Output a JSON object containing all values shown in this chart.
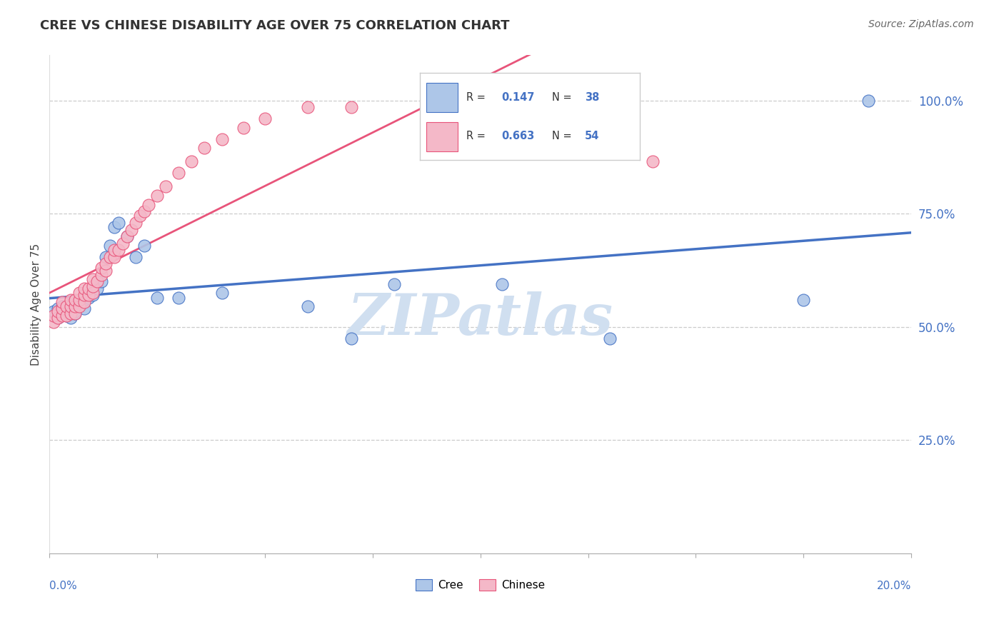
{
  "title": "CREE VS CHINESE DISABILITY AGE OVER 75 CORRELATION CHART",
  "source": "Source: ZipAtlas.com",
  "ylabel": "Disability Age Over 75",
  "cree_R": 0.147,
  "cree_N": 38,
  "chinese_R": 0.663,
  "chinese_N": 54,
  "cree_color": "#adc6e8",
  "chinese_color": "#f4b8c8",
  "cree_line_color": "#4472c4",
  "chinese_line_color": "#e8547a",
  "background_color": "#ffffff",
  "watermark": "ZIPatlas",
  "watermark_color": "#d0dff0",
  "xlim": [
    0.0,
    0.2
  ],
  "ylim": [
    0.0,
    1.1
  ],
  "cree_x": [
    0.001,
    0.001,
    0.002,
    0.002,
    0.003,
    0.003,
    0.004,
    0.004,
    0.005,
    0.005,
    0.005,
    0.006,
    0.006,
    0.007,
    0.007,
    0.008,
    0.008,
    0.009,
    0.01,
    0.011,
    0.012,
    0.013,
    0.014,
    0.015,
    0.016,
    0.018,
    0.02,
    0.022,
    0.025,
    0.03,
    0.04,
    0.06,
    0.07,
    0.08,
    0.105,
    0.13,
    0.175,
    0.19
  ],
  "cree_y": [
    0.525,
    0.535,
    0.52,
    0.54,
    0.53,
    0.545,
    0.525,
    0.535,
    0.52,
    0.55,
    0.545,
    0.53,
    0.535,
    0.55,
    0.56,
    0.54,
    0.56,
    0.565,
    0.57,
    0.585,
    0.6,
    0.655,
    0.68,
    0.72,
    0.73,
    0.7,
    0.655,
    0.68,
    0.565,
    0.565,
    0.575,
    0.545,
    0.475,
    0.595,
    0.595,
    0.475,
    0.56,
    1.0
  ],
  "chinese_x": [
    0.001,
    0.001,
    0.002,
    0.002,
    0.003,
    0.003,
    0.003,
    0.004,
    0.004,
    0.005,
    0.005,
    0.005,
    0.006,
    0.006,
    0.006,
    0.007,
    0.007,
    0.007,
    0.008,
    0.008,
    0.008,
    0.009,
    0.009,
    0.01,
    0.01,
    0.01,
    0.011,
    0.012,
    0.012,
    0.013,
    0.013,
    0.014,
    0.015,
    0.015,
    0.016,
    0.017,
    0.018,
    0.019,
    0.02,
    0.021,
    0.022,
    0.023,
    0.025,
    0.027,
    0.03,
    0.033,
    0.036,
    0.04,
    0.045,
    0.05,
    0.06,
    0.07,
    0.09,
    0.14
  ],
  "chinese_y": [
    0.51,
    0.525,
    0.52,
    0.535,
    0.525,
    0.54,
    0.555,
    0.525,
    0.545,
    0.53,
    0.545,
    0.56,
    0.53,
    0.545,
    0.56,
    0.545,
    0.56,
    0.575,
    0.555,
    0.57,
    0.585,
    0.57,
    0.585,
    0.575,
    0.59,
    0.605,
    0.6,
    0.615,
    0.63,
    0.625,
    0.64,
    0.655,
    0.655,
    0.67,
    0.67,
    0.685,
    0.7,
    0.715,
    0.73,
    0.745,
    0.755,
    0.77,
    0.79,
    0.81,
    0.84,
    0.865,
    0.895,
    0.915,
    0.94,
    0.96,
    0.985,
    0.985,
    0.975,
    0.865
  ]
}
